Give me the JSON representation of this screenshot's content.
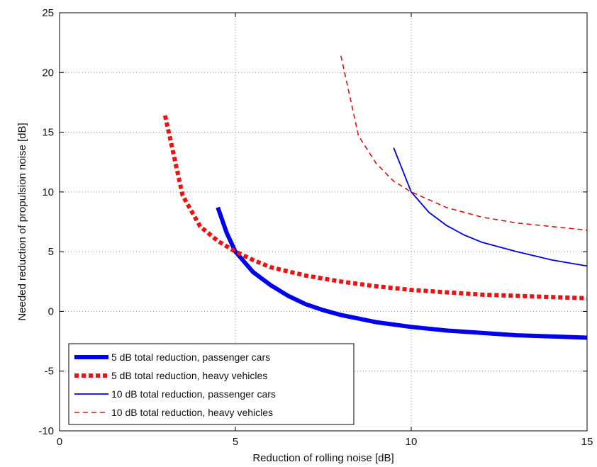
{
  "chart_data": {
    "type": "line",
    "title": "",
    "xlabel": "Reduction of rolling noise [dB]",
    "ylabel": "Needed reduction of propulsion noise [dB]",
    "xlim": [
      0,
      15
    ],
    "ylim": [
      -10,
      25
    ],
    "xticks": [
      "0",
      "5",
      "10",
      "15"
    ],
    "yticks": [
      "-10",
      "-5",
      "0",
      "5",
      "10",
      "15",
      "20",
      "25"
    ],
    "grid": true,
    "legend_position": "bottom-left",
    "series": [
      {
        "name": "5 dB total reduction, passenger cars",
        "color": "#0000ee",
        "style": "solid-thick",
        "x": [
          4.5,
          4.75,
          5.0,
          5.5,
          6.0,
          6.5,
          7.0,
          7.5,
          8.0,
          9.0,
          10.0,
          11.0,
          12.0,
          13.0,
          14.0,
          15.0
        ],
        "y": [
          8.7,
          6.6,
          5.0,
          3.3,
          2.2,
          1.3,
          0.6,
          0.1,
          -0.3,
          -0.9,
          -1.3,
          -1.6,
          -1.8,
          -2.0,
          -2.1,
          -2.2
        ]
      },
      {
        "name": "5 dB total reduction, heavy vehicles",
        "color": "#ee1111",
        "style": "dotted-thick",
        "x": [
          3.0,
          3.5,
          4.0,
          4.5,
          5.0,
          5.5,
          6.0,
          7.0,
          8.0,
          9.0,
          10.0,
          11.0,
          12.0,
          13.0,
          14.0,
          15.0
        ],
        "y": [
          16.4,
          9.7,
          7.1,
          5.9,
          5.0,
          4.3,
          3.7,
          3.0,
          2.5,
          2.1,
          1.8,
          1.6,
          1.4,
          1.3,
          1.2,
          1.1
        ]
      },
      {
        "name": "10 dB total reduction, passenger cars",
        "color": "#0000dd",
        "style": "solid-thin",
        "x": [
          9.5,
          10.0,
          10.5,
          11.0,
          11.5,
          12.0,
          13.0,
          14.0,
          15.0
        ],
        "y": [
          13.7,
          10.0,
          8.3,
          7.2,
          6.4,
          5.8,
          5.0,
          4.3,
          3.8
        ]
      },
      {
        "name": "10 dB total reduction, heavy vehicles",
        "color": "#dd1111",
        "style": "dashed-thin",
        "x": [
          8.0,
          8.5,
          9.0,
          9.5,
          10.0,
          11.0,
          12.0,
          13.0,
          14.0,
          15.0
        ],
        "y": [
          21.4,
          14.7,
          12.4,
          10.9,
          10.0,
          8.7,
          7.9,
          7.4,
          7.1,
          6.8
        ]
      }
    ]
  }
}
